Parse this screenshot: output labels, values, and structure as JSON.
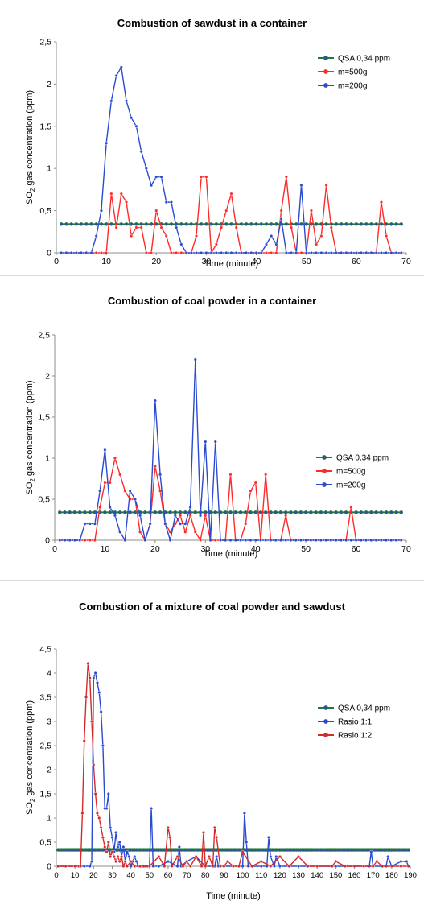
{
  "chart_data": [
    {
      "type": "line",
      "title": "Combustion of sawdust in a container",
      "xlabel": "Time (minute)",
      "ylabel": "SO2 gas concentration (ppm)",
      "ylabel_main": "SO",
      "ylabel_sub": "2",
      "ylabel_rest": " gas concentration (ppm)",
      "xlim": [
        0,
        70
      ],
      "ylim": [
        0,
        2.5
      ],
      "xticks": [
        "0",
        "10",
        "20",
        "30",
        "40",
        "50",
        "60",
        "70"
      ],
      "yticks": [
        "0",
        "0,5",
        "1",
        "1,5",
        "2",
        "2,5"
      ],
      "legend_position": "right",
      "grid": false,
      "series": [
        {
          "name": "QSA 0,34 ppm",
          "color": "#1f7a3a",
          "marker_color": "#2f5597",
          "constant": 0.34,
          "x_start": 1,
          "x_end": 69
        },
        {
          "name": "m=500g",
          "color": "#ff2a2a",
          "x": [
            1,
            2,
            3,
            4,
            5,
            6,
            7,
            8,
            9,
            10,
            11,
            12,
            13,
            14,
            15,
            16,
            17,
            18,
            19,
            20,
            21,
            22,
            23,
            24,
            25,
            26,
            27,
            28,
            29,
            30,
            31,
            32,
            33,
            34,
            35,
            36,
            37,
            38,
            39,
            40,
            41,
            42,
            43,
            44,
            45,
            46,
            47,
            48,
            49,
            50,
            51,
            52,
            53,
            54,
            55,
            56,
            57,
            58,
            59,
            60,
            61,
            62,
            63,
            64,
            65,
            66,
            67,
            68,
            69
          ],
          "y": [
            0,
            0,
            0,
            0,
            0,
            0,
            0,
            0,
            0,
            0,
            0.7,
            0.3,
            0.7,
            0.6,
            0.2,
            0.3,
            0.3,
            0,
            0,
            0.5,
            0.3,
            0.2,
            0,
            0,
            0,
            0,
            0,
            0.2,
            0.9,
            0.9,
            0,
            0.1,
            0.3,
            0.5,
            0.7,
            0.3,
            0,
            0,
            0,
            0,
            0,
            0,
            0,
            0,
            0.5,
            0.9,
            0.3,
            0,
            0,
            0,
            0.5,
            0.1,
            0.2,
            0.8,
            0.3,
            0,
            0,
            0,
            0,
            0,
            0,
            0,
            0,
            0,
            0.6,
            0.2,
            0,
            0,
            0
          ]
        },
        {
          "name": "m=200g",
          "color": "#2a4bd0",
          "x": [
            1,
            2,
            3,
            4,
            5,
            6,
            7,
            8,
            9,
            10,
            11,
            12,
            13,
            14,
            15,
            16,
            17,
            18,
            19,
            20,
            21,
            22,
            23,
            24,
            25,
            26,
            27,
            28,
            29,
            30,
            31,
            32,
            33,
            34,
            35,
            36,
            37,
            38,
            39,
            40,
            41,
            42,
            43,
            44,
            45,
            46,
            47,
            48,
            49,
            50,
            51,
            52,
            53,
            54,
            55,
            56,
            57,
            58,
            59,
            60,
            61,
            62,
            63,
            64,
            65,
            66,
            67,
            68,
            69
          ],
          "y": [
            0,
            0,
            0,
            0,
            0,
            0,
            0,
            0.2,
            0.5,
            1.3,
            1.8,
            2.1,
            2.2,
            1.8,
            1.6,
            1.5,
            1.2,
            1.0,
            0.8,
            0.9,
            0.9,
            0.6,
            0.6,
            0.3,
            0.1,
            0,
            0,
            0,
            0,
            0,
            0,
            0,
            0,
            0,
            0,
            0,
            0,
            0,
            0,
            0,
            0,
            0.1,
            0.2,
            0.1,
            0.4,
            0,
            0,
            0,
            0.8,
            0,
            0,
            0,
            0,
            0,
            0,
            0,
            0,
            0,
            0,
            0,
            0,
            0,
            0,
            0,
            0,
            0,
            0,
            0,
            0
          ]
        }
      ]
    },
    {
      "type": "line",
      "title": "Combustion of coal powder in a container",
      "xlabel": "Time (minute)",
      "ylabel": "SO2 gas concentration (ppm)",
      "ylabel_main": "SO",
      "ylabel_sub": "2",
      "ylabel_rest": " gas concentration (ppm)",
      "xlim": [
        0,
        70
      ],
      "ylim": [
        0,
        2.5
      ],
      "xticks": [
        "0",
        "10",
        "20",
        "30",
        "40",
        "50",
        "60",
        "70"
      ],
      "yticks": [
        "0",
        "0,5",
        "1",
        "1,5",
        "2",
        "2,5"
      ],
      "legend_position": "right",
      "grid": false,
      "series": [
        {
          "name": "QSA 0,34 ppm",
          "color": "#1f7a3a",
          "marker_color": "#2f5597",
          "constant": 0.34,
          "x_start": 1,
          "x_end": 69
        },
        {
          "name": "m=500g",
          "color": "#ff2a2a",
          "x": [
            1,
            2,
            3,
            4,
            5,
            6,
            7,
            8,
            9,
            10,
            11,
            12,
            13,
            14,
            15,
            16,
            17,
            18,
            19,
            20,
            21,
            22,
            23,
            24,
            25,
            26,
            27,
            28,
            29,
            30,
            31,
            32,
            33,
            34,
            35,
            36,
            37,
            38,
            39,
            40,
            41,
            42,
            43,
            44,
            45,
            46,
            47,
            48,
            49,
            50,
            51,
            52,
            53,
            54,
            55,
            56,
            57,
            58,
            59,
            60,
            61,
            62,
            63,
            64,
            65,
            66,
            67,
            68,
            69
          ],
          "y": [
            0,
            0,
            0,
            0,
            0,
            0,
            0,
            0,
            0.4,
            0.7,
            0.7,
            1.0,
            0.8,
            0.6,
            0.5,
            0.5,
            0.1,
            0,
            0.2,
            0.9,
            0.6,
            0.2,
            0.1,
            0.2,
            0.3,
            0.1,
            0.3,
            0.1,
            0,
            0.3,
            0,
            0,
            0,
            0,
            0.8,
            0,
            0,
            0.2,
            0.6,
            0.7,
            0,
            0.8,
            0,
            0,
            0,
            0.3,
            0,
            0,
            0,
            0,
            0,
            0,
            0,
            0,
            0,
            0,
            0,
            0,
            0.4,
            0,
            0,
            0,
            0,
            0,
            0,
            0,
            0,
            0,
            0
          ]
        },
        {
          "name": "m=200g",
          "color": "#2a4bd0",
          "x": [
            1,
            2,
            3,
            4,
            5,
            6,
            7,
            8,
            9,
            10,
            11,
            12,
            13,
            14,
            15,
            16,
            17,
            18,
            19,
            20,
            21,
            22,
            23,
            24,
            25,
            26,
            27,
            28,
            29,
            30,
            31,
            32,
            33,
            34,
            35,
            36,
            37,
            38,
            39,
            40,
            41,
            42,
            43,
            44,
            45,
            46,
            47,
            48,
            49,
            50,
            51,
            52,
            53,
            54,
            55,
            56,
            57,
            58,
            59,
            60,
            61,
            62,
            63,
            64,
            65,
            66,
            67,
            68,
            69
          ],
          "y": [
            0,
            0,
            0,
            0,
            0,
            0.2,
            0.2,
            0.2,
            0.6,
            1.1,
            0.4,
            0.3,
            0.1,
            0,
            0.6,
            0.5,
            0.3,
            0,
            0.2,
            1.7,
            0.8,
            0.2,
            0,
            0.3,
            0.2,
            0.2,
            0.4,
            2.2,
            0.3,
            1.2,
            0,
            1.2,
            0,
            0,
            0,
            0,
            0,
            0,
            0,
            0,
            0,
            0,
            0,
            0,
            0,
            0,
            0,
            0,
            0,
            0,
            0,
            0,
            0,
            0,
            0,
            0,
            0,
            0,
            0,
            0,
            0,
            0,
            0,
            0,
            0,
            0,
            0,
            0,
            0
          ]
        }
      ]
    },
    {
      "type": "line",
      "title": "Combustion of a mixture of coal powder and sawdust",
      "xlabel": "Time (minute)",
      "ylabel": "SO2 gas concentration (ppm)",
      "ylabel_main": "SO",
      "ylabel_sub": "2",
      "ylabel_rest": " gas concentration (ppm)",
      "xlim": [
        0,
        190
      ],
      "ylim": [
        0,
        4.5
      ],
      "xticks": [
        "0",
        "10",
        "20",
        "30",
        "40",
        "50",
        "60",
        "70",
        "80",
        "90",
        "100",
        "110",
        "120",
        "130",
        "140",
        "150",
        "160",
        "170",
        "180",
        "190"
      ],
      "yticks": [
        "0",
        "0,5",
        "1",
        "1,5",
        "2",
        "2,5",
        "3",
        "3,5",
        "4",
        "4,5"
      ],
      "legend_position": "right",
      "grid": false,
      "series": [
        {
          "name": "QSA 0,34 ppm",
          "color": "#1f7a3a",
          "marker_color": "#2f5597",
          "constant": 0.34,
          "x_start": 1,
          "x_end": 189
        },
        {
          "name": "Rasio 1:1",
          "color": "#2a4bd0",
          "x": [
            1,
            5,
            10,
            15,
            18,
            19,
            20,
            21,
            22,
            23,
            24,
            25,
            26,
            27,
            28,
            29,
            30,
            31,
            32,
            33,
            34,
            35,
            36,
            37,
            38,
            39,
            40,
            41,
            42,
            43,
            44,
            45,
            46,
            47,
            48,
            49,
            50,
            51,
            52,
            55,
            60,
            65,
            66,
            67,
            70,
            75,
            80,
            85,
            86,
            87,
            90,
            95,
            100,
            101,
            102,
            103,
            105,
            110,
            113,
            114,
            115,
            117,
            118,
            120,
            125,
            130,
            140,
            150,
            160,
            168,
            169,
            170,
            175,
            177,
            178,
            180,
            185,
            188,
            189
          ],
          "y": [
            0,
            0,
            0,
            0,
            0,
            0.1,
            3.9,
            4.0,
            3.8,
            3.6,
            3.2,
            2.5,
            1.2,
            1.2,
            1.5,
            0.8,
            0.6,
            0.3,
            0.7,
            0.4,
            0.5,
            0.2,
            0.4,
            0.1,
            0.3,
            0.2,
            0,
            0.1,
            0.2,
            0.1,
            0,
            0,
            0,
            0,
            0,
            0,
            0,
            1.2,
            0,
            0,
            0.1,
            0,
            0.4,
            0,
            0.1,
            0.2,
            0,
            0,
            0.2,
            0,
            0,
            0,
            0,
            1.1,
            0.5,
            0,
            0,
            0,
            0,
            0.6,
            0.2,
            0,
            0.2,
            0,
            0,
            0,
            0,
            0,
            0,
            0,
            0.3,
            0,
            0,
            0,
            0.2,
            0,
            0.1,
            0.1,
            0
          ]
        },
        {
          "name": "Rasio 1:2",
          "color": "#d42a2a",
          "x": [
            1,
            5,
            10,
            12,
            13,
            14,
            15,
            16,
            17,
            18,
            19,
            20,
            21,
            22,
            23,
            24,
            25,
            26,
            27,
            28,
            29,
            30,
            31,
            32,
            33,
            34,
            35,
            36,
            37,
            38,
            40,
            42,
            45,
            50,
            55,
            58,
            60,
            61,
            62,
            65,
            68,
            70,
            72,
            75,
            78,
            79,
            80,
            82,
            84,
            85,
            86,
            88,
            90,
            92,
            95,
            98,
            100,
            105,
            110,
            115,
            120,
            125,
            130,
            135,
            140,
            148,
            150,
            155,
            160,
            165,
            170,
            172,
            175,
            180,
            185,
            189
          ],
          "y": [
            0,
            0,
            0,
            0,
            0,
            1.1,
            2.6,
            3.5,
            4.2,
            3.9,
            3.0,
            2.1,
            1.5,
            1.1,
            1.0,
            0.8,
            0.6,
            0.4,
            0.3,
            0.5,
            0.2,
            0.3,
            0.2,
            0.1,
            0.2,
            0.1,
            0.2,
            0,
            0.1,
            0,
            0.1,
            0,
            0,
            0,
            0.2,
            0,
            0.8,
            0.6,
            0,
            0.2,
            0,
            0.1,
            0,
            0.2,
            0,
            0.7,
            0,
            0.2,
            0,
            0.8,
            0.6,
            0,
            0,
            0.1,
            0,
            0,
            0.3,
            0,
            0.1,
            0,
            0.2,
            0,
            0.2,
            0,
            0,
            0,
            0.1,
            0,
            0,
            0,
            0,
            0.1,
            0,
            0,
            0,
            0
          ]
        }
      ]
    }
  ]
}
